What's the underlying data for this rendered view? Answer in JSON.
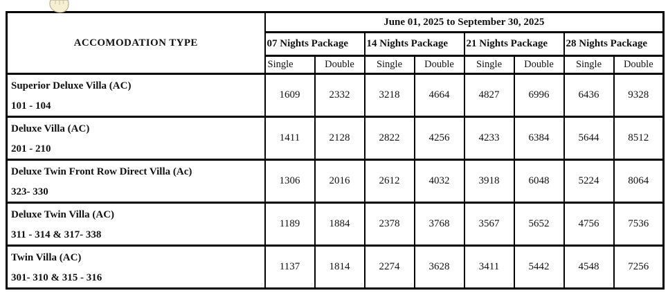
{
  "table": {
    "accommodation_header": "ACCOMODATION TYPE",
    "date_range": "June 01, 2025 to September 30, 2025",
    "packages": [
      "07 Nights Package",
      "14 Nights Package",
      "21 Nights Package",
      "28 Nights Package"
    ],
    "occupancy_labels": [
      "Single",
      "Double",
      "Single",
      "Double",
      "Single",
      "Double",
      "Single",
      "Double"
    ],
    "rows": [
      {
        "type": "Superior Deluxe Villa (AC)",
        "rooms": "101 - 104",
        "rates": [
          "1609",
          "2332",
          "3218",
          "4664",
          "4827",
          "6996",
          "6436",
          "9328"
        ]
      },
      {
        "type": "Deluxe Villa (AC)",
        "rooms": "201 - 210",
        "rates": [
          "1411",
          "2128",
          "2822",
          "4256",
          "4233",
          "6384",
          "5644",
          "8512"
        ]
      },
      {
        "type": "Deluxe Twin Front Row Direct Villa (Ac)",
        "rooms": "323- 330",
        "rates": [
          "1306",
          "2016",
          "2612",
          "4032",
          "3918",
          "6048",
          "5224",
          "8064"
        ]
      },
      {
        "type": "Deluxe Twin Villa (AC)",
        "rooms": "311 - 314 & 317- 338",
        "rates": [
          "1189",
          "1884",
          "2378",
          "3768",
          "3567",
          "5652",
          "4756",
          "7536"
        ]
      },
      {
        "type": "Twin Villa (AC)",
        "rooms": "301- 310 & 315 - 316",
        "rates": [
          "1137",
          "1814",
          "2274",
          "3628",
          "3411",
          "5442",
          "4548",
          "7256"
        ]
      }
    ]
  },
  "colors": {
    "border": "#000000",
    "text": "#111111",
    "background": "#ffffff",
    "cursor_fill": "#f7efd3",
    "cursor_stroke": "#b7b098"
  }
}
